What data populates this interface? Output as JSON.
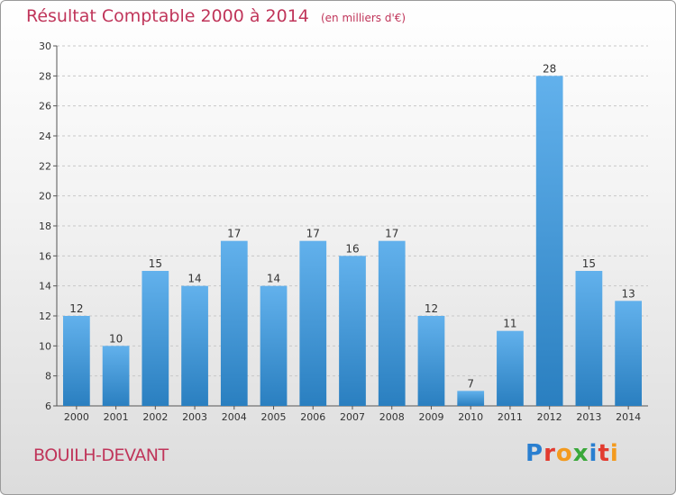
{
  "chart_data": {
    "type": "bar",
    "title": "Résultat Comptable 2000 à 2014",
    "subtitle": "(en milliers d'€)",
    "categories": [
      "2000",
      "2001",
      "2002",
      "2003",
      "2004",
      "2005",
      "2006",
      "2007",
      "2008",
      "2009",
      "2010",
      "2011",
      "2012",
      "2013",
      "2014"
    ],
    "values": [
      12,
      10,
      15,
      14,
      17,
      14,
      17,
      16,
      17,
      12,
      7,
      11,
      28,
      15,
      13
    ],
    "ylim": [
      6,
      30
    ],
    "yticks": [
      6,
      8,
      10,
      12,
      14,
      16,
      18,
      20,
      22,
      24,
      26,
      28,
      30
    ],
    "grid": true,
    "colors": {
      "bar_light": "#62b1ec",
      "bar_dark": "#2a7fc0",
      "text": "#333333",
      "title": "#c0355a"
    }
  },
  "commune": "BOUILH-DEVANT",
  "logo": {
    "letters": [
      "P",
      "r",
      "o",
      "x",
      "i",
      "t",
      "i"
    ]
  }
}
